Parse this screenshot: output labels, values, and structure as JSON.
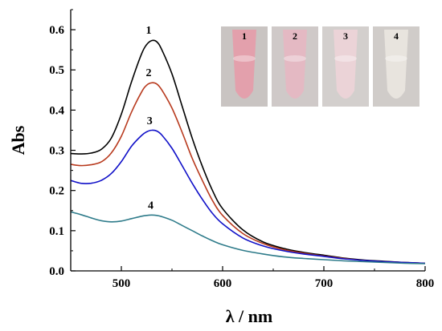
{
  "chart_data": {
    "type": "line",
    "xlabel": "λ / nm",
    "ylabel": "Abs",
    "xlim": [
      450,
      800
    ],
    "ylim": [
      0,
      0.65
    ],
    "xticks": [
      500,
      600,
      700,
      800
    ],
    "yticks": [
      0.0,
      0.1,
      0.2,
      0.3,
      0.4,
      0.5,
      0.6
    ],
    "grid": false,
    "series": [
      {
        "name": "1",
        "color": "#000000",
        "x": [
          450,
          460,
          470,
          480,
          490,
          500,
          510,
          520,
          525,
          530,
          535,
          540,
          550,
          560,
          570,
          580,
          590,
          600,
          620,
          640,
          660,
          680,
          700,
          720,
          740,
          760,
          780,
          800
        ],
        "y": [
          0.292,
          0.291,
          0.293,
          0.302,
          0.33,
          0.39,
          0.47,
          0.54,
          0.563,
          0.573,
          0.57,
          0.55,
          0.49,
          0.41,
          0.33,
          0.26,
          0.2,
          0.155,
          0.102,
          0.072,
          0.056,
          0.046,
          0.039,
          0.032,
          0.027,
          0.024,
          0.021,
          0.019
        ]
      },
      {
        "name": "2",
        "color": "#b83a1e",
        "x": [
          450,
          460,
          470,
          480,
          490,
          500,
          510,
          520,
          525,
          530,
          535,
          540,
          550,
          560,
          570,
          580,
          590,
          600,
          620,
          640,
          660,
          680,
          700,
          720,
          740,
          760,
          780,
          800
        ],
        "y": [
          0.265,
          0.262,
          0.264,
          0.271,
          0.293,
          0.335,
          0.395,
          0.445,
          0.462,
          0.468,
          0.465,
          0.45,
          0.405,
          0.345,
          0.28,
          0.225,
          0.175,
          0.138,
          0.093,
          0.068,
          0.053,
          0.044,
          0.037,
          0.031,
          0.026,
          0.023,
          0.021,
          0.019
        ]
      },
      {
        "name": "3",
        "color": "#1010c8",
        "x": [
          450,
          460,
          470,
          480,
          490,
          500,
          510,
          520,
          525,
          530,
          535,
          540,
          550,
          560,
          570,
          580,
          590,
          600,
          620,
          640,
          660,
          680,
          700,
          720,
          740,
          760,
          780,
          800
        ],
        "y": [
          0.225,
          0.218,
          0.218,
          0.225,
          0.242,
          0.272,
          0.31,
          0.337,
          0.346,
          0.35,
          0.348,
          0.338,
          0.305,
          0.262,
          0.218,
          0.178,
          0.143,
          0.117,
          0.082,
          0.062,
          0.05,
          0.042,
          0.036,
          0.03,
          0.026,
          0.023,
          0.021,
          0.019
        ]
      },
      {
        "name": "4",
        "color": "#2e7b8a",
        "x": [
          450,
          460,
          470,
          480,
          490,
          500,
          510,
          520,
          525,
          530,
          535,
          540,
          550,
          560,
          570,
          580,
          590,
          600,
          620,
          640,
          660,
          680,
          700,
          720,
          740,
          760,
          780,
          800
        ],
        "y": [
          0.147,
          0.14,
          0.132,
          0.125,
          0.122,
          0.124,
          0.13,
          0.136,
          0.138,
          0.139,
          0.138,
          0.135,
          0.126,
          0.113,
          0.1,
          0.087,
          0.075,
          0.065,
          0.051,
          0.042,
          0.035,
          0.031,
          0.028,
          0.025,
          0.023,
          0.021,
          0.019,
          0.018
        ]
      }
    ],
    "curve_labels": [
      {
        "text": "1",
        "x": 527,
        "y": 0.59
      },
      {
        "text": "2",
        "x": 527,
        "y": 0.485
      },
      {
        "text": "3",
        "x": 528,
        "y": 0.365
      },
      {
        "text": "4",
        "x": 529,
        "y": 0.155
      }
    ]
  },
  "inset_photos": [
    {
      "label": "1",
      "tint": "#e89aa8",
      "bg": "#c9c4c2"
    },
    {
      "label": "2",
      "tint": "#e8b6c2",
      "bg": "#cfc9c8"
    },
    {
      "label": "3",
      "tint": "#efd4d8",
      "bg": "#d3cfcd"
    },
    {
      "label": "4",
      "tint": "#ece7e2",
      "bg": "#d0ccc9"
    }
  ]
}
